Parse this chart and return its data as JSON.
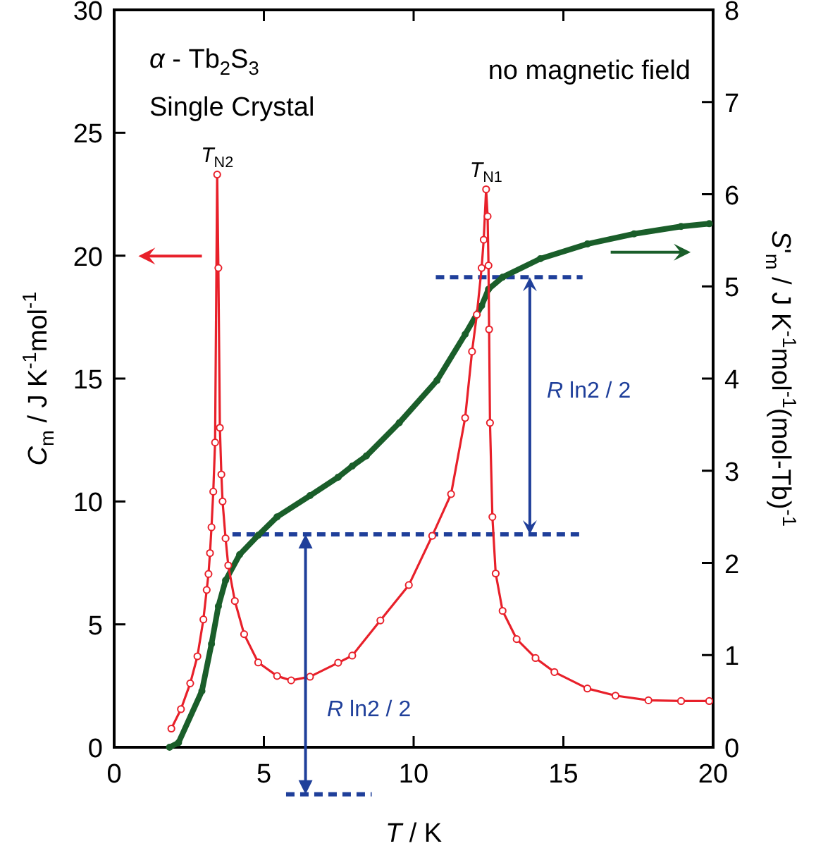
{
  "chart_data": {
    "type": "line",
    "xlabel": "T / K",
    "ylabel": "C$_{m}$ / J K$^{-1}$mol$^{-1}$",
    "y2label": "S'$_{m}$ / J K$^{-1}$mol$^{-1}$(mol-Tb)$^{-1}$",
    "xlim": [
      0,
      20
    ],
    "xticks": [
      0,
      5,
      10,
      15,
      20
    ],
    "ylim": [
      0,
      30
    ],
    "yticks": [
      0,
      5,
      10,
      15,
      20,
      25,
      30
    ],
    "y2lim": [
      0,
      8
    ],
    "y2ticks": [
      0,
      1,
      2,
      3,
      4,
      5,
      6,
      7,
      8
    ],
    "grid": false,
    "series": [
      {
        "color": "#e8202a",
        "marker": "circle",
        "x": [
          1.91,
          2.23,
          2.54,
          2.78,
          2.98,
          3.09,
          3.15,
          3.2,
          3.25,
          3.31,
          3.37,
          3.44,
          3.48,
          3.53,
          3.58,
          3.62,
          3.72,
          3.81,
          4.03,
          4.34,
          4.81,
          5.44,
          5.91,
          6.54,
          7.48,
          7.95,
          8.89,
          9.84,
          10.62,
          11.25,
          11.72,
          11.95,
          12.11,
          12.27,
          12.34,
          12.42,
          12.47,
          12.5,
          12.52,
          12.55,
          12.63,
          12.74,
          12.97,
          13.44,
          14.07,
          14.7,
          15.8,
          16.74,
          17.84,
          18.93,
          19.87
        ],
        "values": [
          0.76,
          1.55,
          2.6,
          3.7,
          5.2,
          6.4,
          7.05,
          7.9,
          8.95,
          10.4,
          12.4,
          23.3,
          19.5,
          13,
          11.1,
          10,
          8.5,
          7.4,
          5.95,
          4.6,
          3.45,
          2.9,
          2.72,
          2.87,
          3.44,
          3.73,
          5.16,
          6.6,
          8.6,
          10.3,
          13.4,
          16.1,
          17.6,
          19.5,
          20.65,
          22.7,
          21.6,
          19.6,
          17,
          13.2,
          9.37,
          7.07,
          5.55,
          4.4,
          3.63,
          3.06,
          2.39,
          2.1,
          1.91,
          1.88,
          1.88
        ]
      },
      {
        "color": "#1a5e2a",
        "marker": "circle",
        "axis": "y2",
        "x": [
          1.85,
          2.15,
          2.93,
          3.25,
          3.48,
          3.72,
          4.19,
          4.81,
          5.44,
          6.54,
          7.48,
          7.95,
          8.42,
          9.52,
          10.78,
          11.72,
          12.27,
          12.5,
          12.97,
          14.23,
          15.8,
          17.36,
          18.93,
          19.87
        ],
        "values": [
          0,
          0.05,
          0.61,
          1.12,
          1.53,
          1.81,
          2.09,
          2.3,
          2.5,
          2.73,
          2.93,
          3.05,
          3.16,
          3.52,
          3.98,
          4.48,
          4.79,
          4.97,
          5.1,
          5.3,
          5.46,
          5.57,
          5.65,
          5.68
        ]
      },
      {
        "color": "#1f3f9a",
        "marker": "none",
        "line_style": "dashed",
        "axis": "y2",
        "x": [
          10.74,
          15.64
        ],
        "values": [
          5.1,
          5.1
        ]
      },
      {
        "color": "#1f3f9a",
        "marker": "none",
        "line_style": "dashed",
        "axis": "y2",
        "x": [
          3.95,
          15.56
        ],
        "values": [
          2.31,
          2.31
        ]
      }
    ],
    "annotations": [
      "α - Tb$_{2}$S$_{3}$",
      "Single Crystal",
      "no magnetic field",
      {
        "text": "T$_{N2}$",
        "x": 3.44,
        "y": 23.3
      },
      {
        "text": "T$_{N1}$",
        "x": 12.42,
        "y": 22.7
      },
      "R ln2 / 2",
      "R ln2 / 2"
    ]
  }
}
